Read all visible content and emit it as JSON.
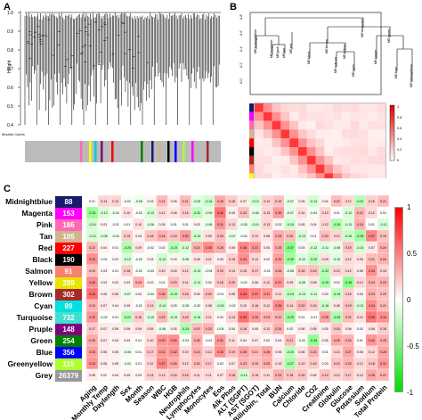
{
  "panels": {
    "a_letter": "A",
    "b_letter": "B",
    "c_letter": "C"
  },
  "panel_a": {
    "y_axis_label": "Height",
    "y_ticks": [
      "1.0",
      "0.9",
      "0.8",
      "0.7",
      "0.6",
      "0.5",
      "0.4"
    ],
    "color_row_label": "Module Colors",
    "module_band_colors": [
      "#bbbbbb",
      "#bbbbbb",
      "#ff69b4",
      "#ffff00",
      "#00ced1",
      "#800080",
      "#ff0000",
      "#bbbbbb",
      "#008000",
      "#191970",
      "#d2b48c",
      "#000000",
      "#0000ff",
      "#adff2f",
      "#ff00ff",
      "#a52a2a"
    ]
  },
  "panel_b": {
    "y_ticks": [
      "0.8",
      "0.6",
      "0.4",
      "0.2",
      "0.0"
    ],
    "scale_ticks": [
      "1",
      "0.8",
      "0.6",
      "0.4",
      "0.2",
      "0"
    ],
    "leaf_labels": [
      "MEmidnightblue",
      "MEmagenta",
      "MEpink",
      "MEtan",
      "MEred",
      "MEblack",
      "MEbrown",
      "MEsalmon",
      "MEyellow",
      "MEcyan",
      "MEturquoise",
      "MEpurple",
      "MEgreen",
      "MEblue",
      "MEgreenyellow"
    ],
    "side_colors": [
      "#191970",
      "#ff00ff",
      "#ff69b4",
      "#d2b48c",
      "#ff0000",
      "#000000",
      "#a52a2a",
      "#fa8072",
      "#ffff00",
      "#00ffff",
      "#40e0d0",
      "#800080",
      "#008000",
      "#0000ff",
      "#adff2f"
    ]
  },
  "panel_c": {
    "modules": [
      {
        "name": "Midnightblue",
        "count": "88",
        "color": "#191970"
      },
      {
        "name": "Magenta",
        "count": "153",
        "color": "#ff00ff"
      },
      {
        "name": "Pink",
        "count": "186",
        "color": "#ff69b4"
      },
      {
        "name": "Tan",
        "count": "105",
        "color": "#d2b48c"
      },
      {
        "name": "Red",
        "count": "227",
        "color": "#ff0000"
      },
      {
        "name": "Black",
        "count": "190",
        "color": "#000000"
      },
      {
        "name": "Salmon",
        "count": "91",
        "color": "#fa8072"
      },
      {
        "name": "Yellow",
        "count": "289",
        "color": "#e6e600"
      },
      {
        "name": "Brown",
        "count": "302",
        "color": "#a52a2a"
      },
      {
        "name": "Cyan",
        "count": "89",
        "color": "#00e0e0"
      },
      {
        "name": "Turquoise",
        "count": "732",
        "color": "#40e0d0"
      },
      {
        "name": "Pruple",
        "count": "148",
        "color": "#800080"
      },
      {
        "name": "Green",
        "count": "254",
        "color": "#008000"
      },
      {
        "name": "Blue",
        "count": "356",
        "color": "#0000ff"
      },
      {
        "name": "Greenyellow",
        "count": "115",
        "color": "#adff2f"
      },
      {
        "name": "Grey",
        "count": "26379",
        "color": "#999999"
      }
    ],
    "traits": [
      "Aging",
      "Monthly Temp",
      "Daylength",
      "Sex",
      "Month",
      "Season",
      "WBC",
      "HGB",
      "Neutrophils",
      "Lymphocytes",
      "Monocytes",
      "Eos",
      "Alk Phos",
      "ALT (SGPT)",
      "AST (SGOT)",
      "Bilirubin, Total",
      "BUN",
      "Calcium",
      "Chloride",
      "CO2",
      "Creatinine",
      "Globulin",
      "Glucose",
      "Potassium",
      "Sodium",
      "Total Protein"
    ],
    "scale_ticks": [
      "1",
      "0.5",
      "0",
      "-0.5",
      "-1"
    ]
  },
  "chart_data": {
    "type": "heatmap",
    "rows": [
      "Midnightblue",
      "Magenta",
      "Pink",
      "Tan",
      "Red",
      "Black",
      "Salmon",
      "Yellow",
      "Brown",
      "Cyan",
      "Turquoise",
      "Pruple",
      "Green",
      "Blue",
      "Greenyellow",
      "Grey"
    ],
    "columns": [
      "Aging",
      "Monthly Temp",
      "Daylength",
      "Sex",
      "Month",
      "Season",
      "WBC",
      "HGB",
      "Neutrophils",
      "Lymphocytes",
      "Monocytes",
      "Eos",
      "Alk Phos",
      "ALT (SGPT)",
      "AST (SGOT)",
      "Bilirubin, Total",
      "BUN",
      "Calcium",
      "Chloride",
      "CO2",
      "Creatinine",
      "Globulin",
      "Glucose",
      "Potassium",
      "Sodium",
      "Total Protein"
    ],
    "correlations": [
      [
        0.01,
        0.13,
        0.13,
        -0.02,
        -0.06,
        0.03,
        0.21,
        0.05,
        0.21,
        -0.09,
        -0.16,
        0.26,
        0.16,
        0.07,
        -0.13,
        0.14,
        0.19,
        -0.07,
        0.05,
        -0.14,
        0.04,
        0.2,
        0.12,
        -0.22,
        0.15,
        0.21
      ],
      [
        -0.31,
        -0.12,
        -0.04,
        0.1,
        -0.02,
        -0.13,
        0.11,
        0.08,
        0.15,
        -0.2,
        -0.09,
        0.42,
        0.05,
        0.2,
        -0.08,
        0.13,
        0.3,
        -0.07,
        0.1,
        -0.04,
        0.13,
        0.01,
        -0.12,
        0.22,
        0.12,
        0.01
      ],
      [
        -0.14,
        0.03,
        -0.01,
        0.01,
        0.1,
        -0.06,
        0.05,
        0.01,
        0.01,
        0.03,
        -0.06,
        0.31,
        0.13,
        -0.05,
        -0.1,
        0.13,
        0.03,
        -0.15,
        0.05,
        0.04,
        0.12,
        -0.25,
        -0.11,
        0.24,
        0.01,
        -0.12
      ],
      [
        -0.13,
        -0.08,
        -0.03,
        0.15,
        0.04,
        0.18,
        0.24,
        0.18,
        0.3,
        -0.14,
        0.09,
        0.2,
        -0.07,
        -0.02,
        0.12,
        0.08,
        0.25,
        0.2,
        -0.13,
        0.01,
        0.2,
        0.13,
        -0.16,
        -0.28,
        0.37,
        0.19
      ],
      [
        0.22,
        0.04,
        0.01,
        -0.25,
        0.09,
        -0.02,
        0.02,
        -0.23,
        -0.12,
        0.23,
        0.35,
        0.25,
        0.05,
        0.36,
        0.31,
        0.05,
        0.25,
        -0.37,
        0.03,
        -0.12,
        -0.11,
        -0.08,
        0.19,
        -0.14,
        0.07,
        0.24
      ],
      [
        0.34,
        -0.01,
        0.02,
        -0.12,
        -0.02,
        0.03,
        -0.14,
        0.03,
        -0.08,
        0.08,
        0.11,
        0.05,
        0.15,
        0.34,
        0.12,
        0.02,
        0.29,
        -0.3,
        -0.1,
        -0.2,
        0.09,
        -0.1,
        0.12,
        0.09,
        0.21,
        0.24
      ],
      [
        0.2,
        0.03,
        0.01,
        0.16,
        -0.02,
        -0.03,
        0.1,
        0.09,
        0.12,
        -0.13,
        -0.04,
        0.19,
        0.13,
        0.15,
        0.17,
        -0.01,
        0.25,
        -0.06,
        0.18,
        0.19,
        -0.22,
        0.13,
        0.12,
        0.06,
        0.34,
        0.13
      ],
      [
        0.35,
        0.03,
        0.03,
        0.03,
        0.24,
        0.02,
        0.01,
        0.2,
        0.11,
        -0.12,
        0.02,
        0.18,
        0.2,
        -0.02,
        0.06,
        0.12,
        0.31,
        0.09,
        -0.08,
        0.08,
        -0.25,
        0.02,
        -0.35,
        0.12,
        0.24,
        0.24
      ],
      [
        0.43,
        0.05,
        0.08,
        -0.07,
        0.02,
        -0.04,
        0.28,
        -0.19,
        0.18,
        0.05,
        0.2,
        -0.01,
        0.08,
        0.44,
        0.37,
        0.31,
        0.11,
        -0.19,
        -0.13,
        -0.11,
        0.03,
        -0.19,
        0.15,
        0.04,
        0.24,
        0.2
      ],
      [
        0.24,
        0.07,
        0.04,
        0.05,
        -0.01,
        0.13,
        -0.14,
        0.03,
        -0.05,
        -0.02,
        0.08,
        -0.15,
        -0.02,
        0.1,
        0.16,
        0.12,
        0.35,
        0.14,
        0.22,
        0.15,
        -0.16,
        0.08,
        0.19,
        -0.12,
        0.34,
        0.21
      ],
      [
        0.32,
        -0.02,
        0.01,
        -0.22,
        0.16,
        -0.1,
        0.22,
        -0.13,
        0.18,
        -0.16,
        0.11,
        0.02,
        0.14,
        0.43,
        0.3,
        0.23,
        0.22,
        -0.29,
        0.01,
        -0.01,
        0.28,
        -0.25,
        0.21,
        0.1,
        0.42,
        0.34
      ],
      [
        0.17,
        0.07,
        0.06,
        0.06,
        0.09,
        0.09,
        -0.06,
        0.05,
        -0.24,
        0.2,
        0.23,
        -0.04,
        0.04,
        0.18,
        0.05,
        0.12,
        0.24,
        0.02,
        0.06,
        0.08,
        0.05,
        0.18,
        0.06,
        0.02,
        0.08,
        0.16
      ],
      [
        0.26,
        0.07,
        0.04,
        0.03,
        0.01,
        0.1,
        0.32,
        0.34,
        -0.03,
        0.25,
        -0.01,
        0.31,
        0.11,
        0.04,
        0.07,
        0.02,
        0.04,
        0.21,
        -0.02,
        -0.33,
        0.05,
        0.26,
        0.24,
        0.01,
        0.32,
        0.25
      ],
      [
        0.3,
        0.06,
        0.05,
        -0.06,
        0.01,
        0.17,
        0.31,
        0.32,
        0.1,
        0.24,
        0.13,
        0.34,
        0.19,
        0.28,
        0.21,
        0.28,
        0.06,
        -0.2,
        0.08,
        0.23,
        0.01,
        0.13,
        0.27,
        0.06,
        0.12,
        0.28
      ],
      [
        0.33,
        0.06,
        0.05,
        -0.03,
        0.01,
        0.12,
        0.37,
        0.26,
        0.12,
        0.2,
        0.17,
        0.02,
        0.07,
        0.23,
        0.2,
        0.25,
        0.1,
        -0.27,
        0.13,
        0.16,
        0.03,
        0.19,
        0.23,
        0.12,
        0.18,
        0.31
      ],
      [
        0.06,
        0.02,
        0.04,
        0.05,
        0.03,
        0.14,
        0.13,
        0.16,
        0.18,
        0.11,
        0.11,
        0.07,
        0.18,
        -0.14,
        0.15,
        0.11,
        0.24,
        0.18,
        0.18,
        0.06,
        0.19,
        0.13,
        0.17,
        0.1,
        0.26,
        0.22
      ]
    ]
  }
}
